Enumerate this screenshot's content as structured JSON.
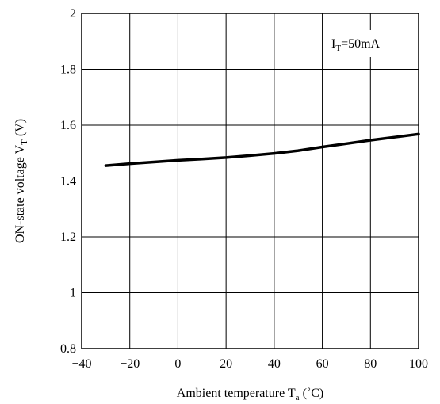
{
  "chart_data": {
    "type": "line",
    "title": "",
    "xlabel": "Ambient temperature",
    "xlabel_symbol": "T",
    "xlabel_sub": "a",
    "xlabel_unit": " (˚C)",
    "ylabel": "ON-state voltage",
    "ylabel_symbol": "V",
    "ylabel_sub": "T",
    "ylabel_unit": " (V)",
    "annotation": {
      "symbol": "I",
      "sub": "T",
      "text": "=50mA"
    },
    "xlim": [
      -40,
      100
    ],
    "ylim": [
      0.8,
      2.0
    ],
    "x_ticks": [
      "−40",
      "−20",
      "0",
      "20",
      "40",
      "60",
      "80",
      "100"
    ],
    "y_ticks": [
      "0.8",
      "1",
      "1.2",
      "1.4",
      "1.6",
      "1.8",
      "2"
    ],
    "grid": true,
    "series": [
      {
        "x": [
          -30,
          -20,
          -10,
          0,
          10,
          20,
          30,
          40,
          50,
          60,
          70,
          80,
          90,
          100
        ],
        "y": [
          1.455,
          1.462,
          1.468,
          1.474,
          1.479,
          1.484,
          1.491,
          1.499,
          1.509,
          1.522,
          1.534,
          1.546,
          1.557,
          1.568
        ]
      }
    ]
  }
}
